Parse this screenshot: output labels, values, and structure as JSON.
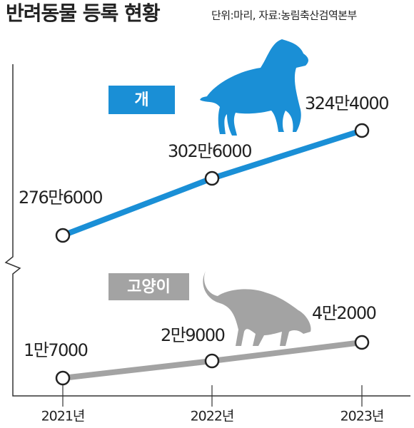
{
  "chart_data": {
    "type": "line",
    "title": "반려동물 등록 현황",
    "subtitle": "단위:마리, 자료:농림축산검역본부",
    "categories": [
      "2021년",
      "2022년",
      "2023년"
    ],
    "series": [
      {
        "name": "개",
        "color": "#1a8fd6",
        "values": [
          2766000,
          3026000,
          3244000
        ],
        "value_labels": [
          "276만6000",
          "302만6000",
          "324만4000"
        ]
      },
      {
        "name": "고양이",
        "color": "#a3a3a3",
        "values": [
          17000,
          29000,
          42000
        ],
        "value_labels": [
          "1만7000",
          "2만9000",
          "4만2000"
        ]
      }
    ]
  }
}
